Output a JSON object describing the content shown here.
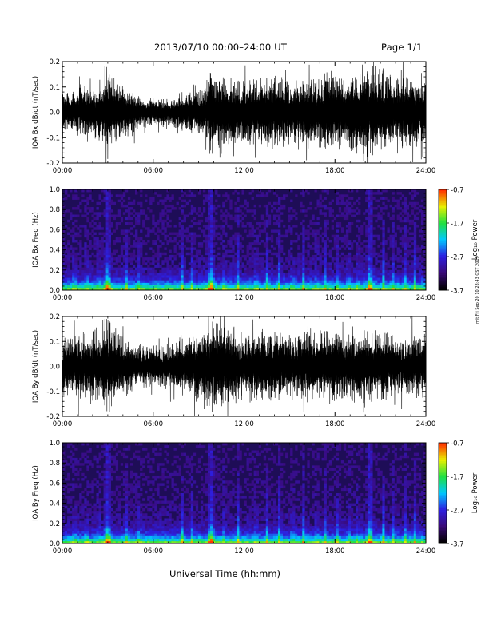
{
  "header": {
    "title": "2013/07/10   00:00–24:00 UT",
    "page": "Page 1/1"
  },
  "xlabel": "Universal Time (hh:mm)",
  "credit": "mit Fri Sep 20 10:28:43 GST 2019",
  "colors": {
    "background": "#ffffff",
    "axes": "#000000",
    "spectrogram_bg": "#1e0d57",
    "colormap": [
      "#000000",
      "#3a0a78",
      "#2d1fe0",
      "#00c8ff",
      "#20e040",
      "#e8f000",
      "#ff3000"
    ]
  },
  "chart_data": [
    {
      "type": "line",
      "ylabel": "IQA Bx dB/dt (nT/sec)",
      "xlim": [
        0,
        24
      ],
      "ylim": [
        -0.2,
        0.2
      ],
      "xticks": [
        "00:00",
        "06:00",
        "12:00",
        "18:00",
        "24:00"
      ],
      "yticks": [
        "-0.2",
        "-0.1",
        "0.0",
        "0.1",
        "0.2"
      ],
      "envelope": {
        "hours": [
          0,
          1,
          2,
          2.7,
          3.0,
          3.5,
          4,
          5,
          6,
          7,
          8,
          9,
          9.6,
          9.8,
          10,
          10.5,
          11,
          12,
          13,
          14,
          15,
          16,
          17,
          18,
          19,
          19.9,
          20.2,
          20.8,
          21.5,
          22,
          23,
          24
        ],
        "amplitude": [
          0.09,
          0.1,
          0.11,
          0.12,
          0.22,
          0.14,
          0.12,
          0.08,
          0.06,
          0.06,
          0.08,
          0.1,
          0.14,
          0.22,
          0.2,
          0.16,
          0.15,
          0.14,
          0.15,
          0.16,
          0.14,
          0.15,
          0.16,
          0.17,
          0.16,
          0.22,
          0.22,
          0.2,
          0.18,
          0.16,
          0.16,
          0.15
        ]
      }
    },
    {
      "type": "heatmap",
      "ylabel": "IQA Bx Freq (Hz)",
      "xlim": [
        0,
        24
      ],
      "ylim": [
        0,
        1.0
      ],
      "xticks": [
        "00:00",
        "06:00",
        "12:00",
        "18:00",
        "24:00"
      ],
      "yticks": [
        "0.0",
        "0.2",
        "0.4",
        "0.6",
        "0.8",
        "1.0"
      ],
      "colorbar": {
        "label": "Log₁₀ Power",
        "range": [
          -3.7,
          -0.7
        ],
        "ticks": [
          "-0.7",
          "-1.7",
          "-2.7",
          "-3.7"
        ]
      },
      "bursts_hours": [
        3.0,
        9.8,
        20.3
      ],
      "lines_hours": [
        0.8,
        1.6,
        2.4,
        4.2,
        5.1,
        7.9,
        8.6,
        10.7,
        11.6,
        12.8,
        13.5,
        14.3,
        15.2,
        15.9,
        16.8,
        17.4,
        18.2,
        18.9,
        19.5,
        21.2,
        21.8,
        22.6,
        23.3
      ]
    },
    {
      "type": "line",
      "ylabel": "IQA By dB/dt (nT/sec)",
      "xlim": [
        0,
        24
      ],
      "ylim": [
        -0.2,
        0.2
      ],
      "xticks": [
        "00:00",
        "06:00",
        "12:00",
        "18:00",
        "24:00"
      ],
      "yticks": [
        "-0.2",
        "-0.1",
        "0.0",
        "0.1",
        "0.2"
      ],
      "envelope": {
        "hours": [
          0,
          1,
          2,
          2.7,
          3.0,
          3.5,
          4,
          5,
          6,
          7,
          8,
          9,
          9.6,
          9.8,
          10,
          10.5,
          11,
          12,
          13,
          14,
          15,
          16,
          17,
          18,
          19,
          19.9,
          20.2,
          20.8,
          21.5,
          22,
          23,
          24
        ],
        "amplitude": [
          0.12,
          0.14,
          0.16,
          0.2,
          0.22,
          0.18,
          0.13,
          0.1,
          0.09,
          0.1,
          0.12,
          0.16,
          0.2,
          0.22,
          0.22,
          0.18,
          0.17,
          0.15,
          0.16,
          0.15,
          0.14,
          0.16,
          0.16,
          0.15,
          0.14,
          0.17,
          0.16,
          0.15,
          0.15,
          0.14,
          0.14,
          0.13
        ]
      }
    },
    {
      "type": "heatmap",
      "ylabel": "IQA By Freq (Hz)",
      "xlim": [
        0,
        24
      ],
      "ylim": [
        0,
        1.0
      ],
      "xticks": [
        "00:00",
        "06:00",
        "12:00",
        "18:00",
        "24:00"
      ],
      "yticks": [
        "0.0",
        "0.2",
        "0.4",
        "0.6",
        "0.8",
        "1.0"
      ],
      "colorbar": {
        "label": "Log₁₀ Power",
        "range": [
          -3.7,
          -0.7
        ],
        "ticks": [
          "-0.7",
          "-1.7",
          "-2.7",
          "-3.7"
        ]
      },
      "bursts_hours": [
        3.0,
        9.8,
        20.3
      ],
      "lines_hours": [
        0.8,
        1.6,
        2.4,
        4.2,
        5.1,
        7.9,
        8.6,
        10.7,
        11.6,
        12.8,
        13.5,
        14.3,
        15.2,
        15.9,
        16.8,
        17.4,
        18.2,
        18.9,
        19.5,
        21.2,
        21.8,
        22.6,
        23.3
      ]
    }
  ]
}
